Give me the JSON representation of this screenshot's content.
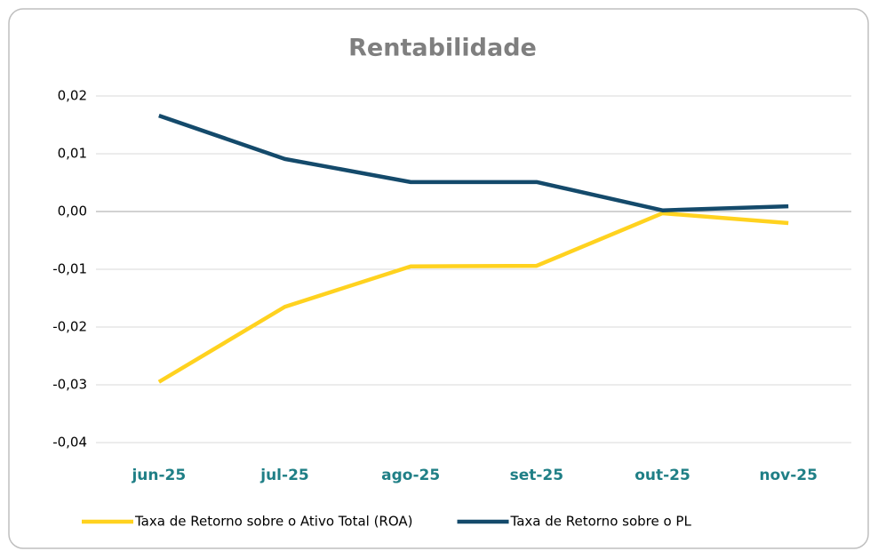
{
  "chart_data": {
    "type": "line",
    "title": "Rentabilidade",
    "categories": [
      "jun-25",
      "jul-25",
      "ago-25",
      "set-25",
      "out-25",
      "nov-25"
    ],
    "series": [
      {
        "name": "Taxa de Retorno sobre o Ativo Total (ROA)",
        "color": "#ffd21f",
        "values": [
          -0.0295,
          -0.0165,
          -0.0095,
          -0.0094,
          -0.0003,
          -0.002
        ]
      },
      {
        "name": "Taxa de Retorno sobre o PL",
        "color": "#144a6b",
        "values": [
          0.0166,
          0.0091,
          0.0051,
          0.0051,
          0.0002,
          0.0009
        ]
      }
    ],
    "ylim": [
      -0.04,
      0.02
    ],
    "yticks": [
      {
        "value": -0.04,
        "label": "-0,04"
      },
      {
        "value": -0.03,
        "label": "-0,03"
      },
      {
        "value": -0.02,
        "label": "-0,02"
      },
      {
        "value": -0.01,
        "label": "-0,01"
      },
      {
        "value": 0,
        "label": "0,00"
      },
      {
        "value": 0.01,
        "label": "0,01"
      },
      {
        "value": 0.02,
        "label": "0,02"
      }
    ],
    "grid": true,
    "legend": "bottom"
  }
}
